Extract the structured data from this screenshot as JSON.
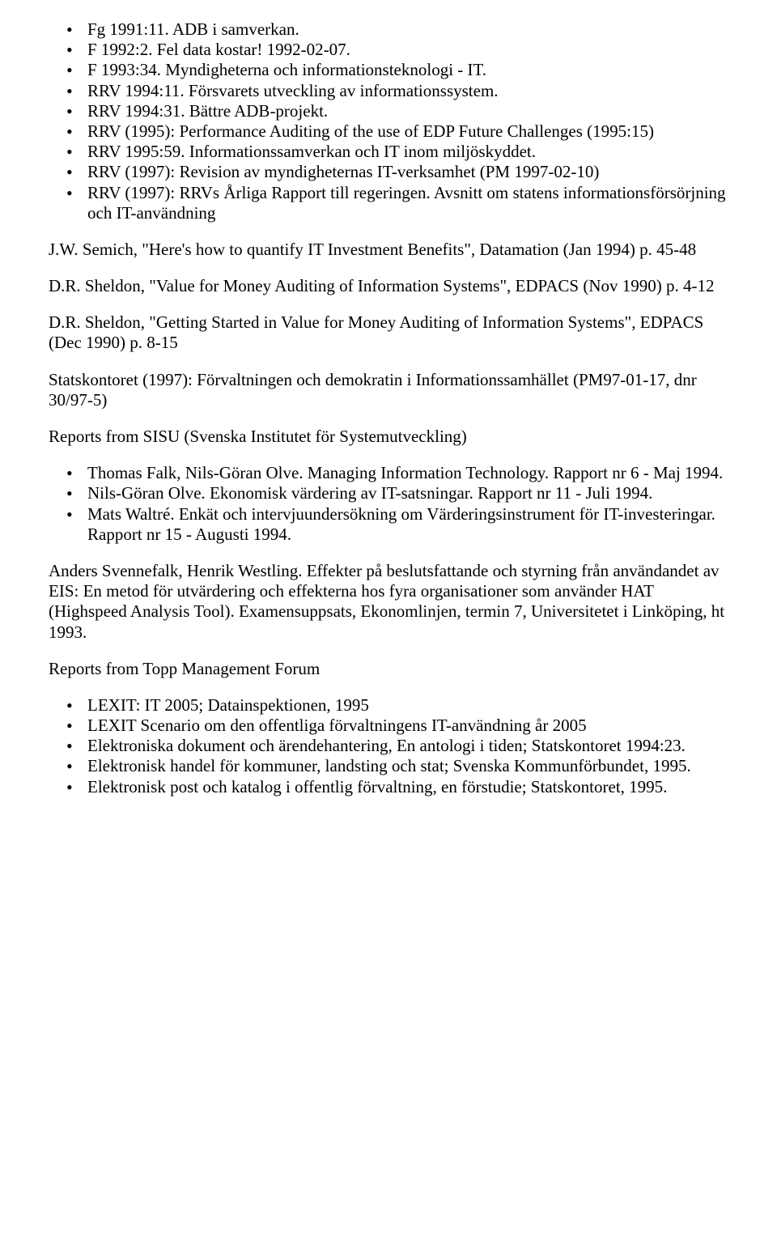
{
  "list1": [
    "Fg 1991:11. ADB i samverkan.",
    "F 1992:2. Fel data kostar! 1992-02-07.",
    "F 1993:34. Myndigheterna och informationsteknologi - IT.",
    "RRV 1994:11. Försvarets utveckling av informationssystem.",
    "RRV 1994:31. Bättre ADB-projekt.",
    "RRV (1995): Performance Auditing of the use of EDP Future Challenges (1995:15)",
    "RRV 1995:59. Informationssamverkan och IT inom miljöskyddet.",
    "RRV (1997): Revision av myndigheternas IT-verksamhet (PM 1997-02-10)",
    "RRV (1997): RRVs Årliga Rapport till regeringen. Avsnitt om statens informationsförsörjning och IT-användning"
  ],
  "p1": "J.W. Semich, \"Here's how to quantify IT Investment Benefits\", Datamation (Jan 1994) p. 45-48",
  "p2": "D.R. Sheldon, \"Value for Money Auditing of Information Systems\", EDPACS (Nov 1990) p. 4-12",
  "p3": "D.R. Sheldon, \"Getting Started in Value for Money Auditing of Information Systems\", EDPACS (Dec 1990) p. 8-15",
  "p4": "Statskontoret (1997): Förvaltningen och demokratin i Informationssamhället (PM97-01-17, dnr 30/97-5)",
  "p5": "Reports from SISU (Svenska Institutet för Systemutveckling)",
  "list2": [
    "Thomas Falk, Nils-Göran Olve. Managing Information Technology. Rapport nr 6 - Maj 1994.",
    "Nils-Göran Olve. Ekonomisk värdering av IT-satsningar. Rapport nr 11 - Juli 1994.",
    "Mats Waltré. Enkät och intervjuundersökning om Värderingsinstrument för IT-investeringar. Rapport nr 15 - Augusti 1994."
  ],
  "p6": "Anders Svennefalk, Henrik Westling. Effekter på beslutsfattande och styrning från användandet av EIS: En metod för utvärdering och effekterna hos fyra organisationer som använder HAT (Highspeed Analysis Tool). Examensuppsats, Ekonomlinjen, termin 7, Universitetet i Linköping, ht 1993.",
  "p7": "Reports from Topp Management Forum",
  "list3": [
    "LEXIT: IT 2005; Datainspektionen, 1995",
    "LEXIT Scenario om den offentliga förvaltningens IT-användning år 2005",
    "Elektroniska dokument och ärendehantering, En antologi i tiden; Statskontoret 1994:23.",
    "Elektronisk handel för kommuner, landsting och stat; Svenska Kommunförbundet, 1995.",
    "Elektronisk post och katalog i offentlig förvaltning, en förstudie; Statskontoret, 1995."
  ]
}
